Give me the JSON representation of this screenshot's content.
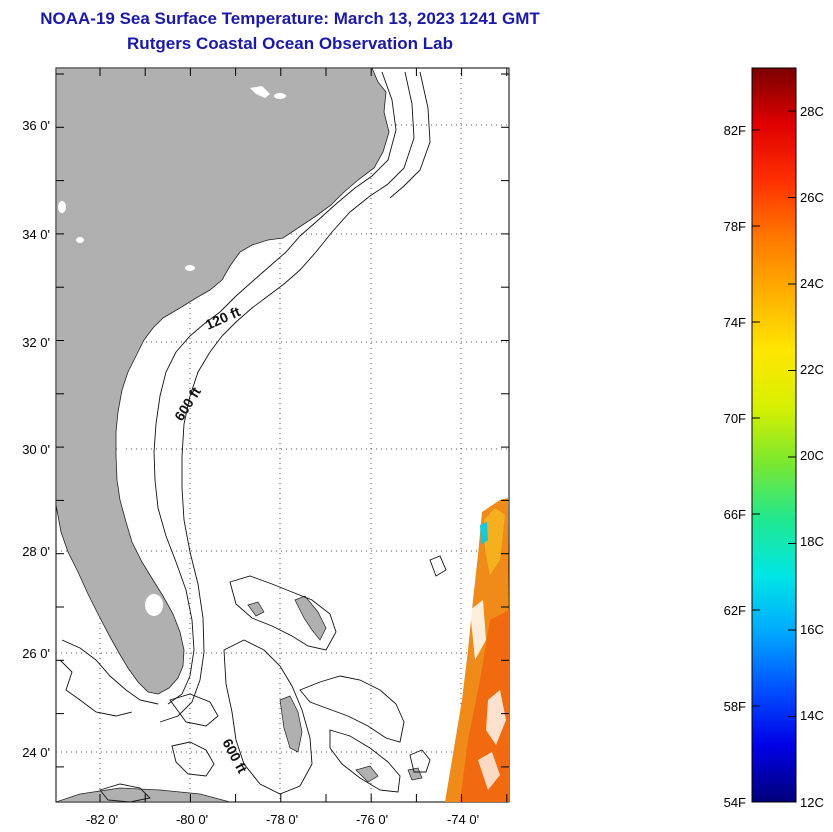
{
  "title": "NOAA-19 Sea Surface Temperature:  March 13, 2023 1241 GMT",
  "subtitle": "Rutgers Coastal Ocean Observation Lab",
  "map": {
    "lat_labels": [
      "36 0'",
      "34 0'",
      "32 0'",
      "30 0'",
      "28 0'",
      "26 0'",
      "24 0'"
    ],
    "lon_labels": [
      "-82 0'",
      "-80 0'",
      "-78 0'",
      "-76 0'",
      "-74 0'"
    ],
    "lat_range": [
      23,
      37
    ],
    "lon_range": [
      -83,
      -73
    ],
    "land_color": "#b0b0b0",
    "contours": [
      {
        "label": "120 ft"
      },
      {
        "label": "600 ft"
      },
      {
        "label": "600 ft"
      }
    ]
  },
  "colorbar": {
    "fahrenheit_labels": [
      "82F",
      "78F",
      "74F",
      "70F",
      "66F",
      "62F",
      "58F",
      "54F"
    ],
    "celsius_labels": [
      "28C",
      "26C",
      "24C",
      "22C",
      "20C",
      "18C",
      "16C",
      "14C",
      "12C"
    ],
    "range_c": [
      12,
      29.2
    ],
    "colors": [
      "#00007a",
      "#0000e6",
      "#0050ff",
      "#00a8ff",
      "#00e6e6",
      "#20e890",
      "#7ae830",
      "#d8f000",
      "#ffe600",
      "#ffb000",
      "#ff7800",
      "#ff3000",
      "#e00000",
      "#7a0000"
    ]
  }
}
